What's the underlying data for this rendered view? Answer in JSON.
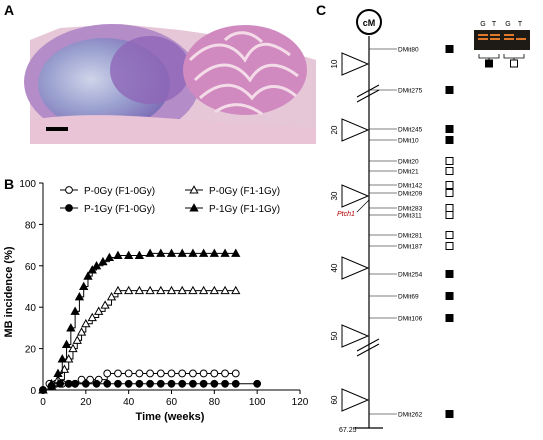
{
  "panels": {
    "a": "A",
    "b": "B",
    "c": "C"
  },
  "chart_data": {
    "type": "line",
    "xlabel": "Time (weeks)",
    "ylabel": "MB incidence (%)",
    "xlim": [
      0,
      120
    ],
    "ylim": [
      0,
      100
    ],
    "xticks": [
      "0",
      "20",
      "40",
      "60",
      "80",
      "100",
      "120"
    ],
    "yticks": [
      "0",
      "20",
      "40",
      "60",
      "80",
      "100"
    ],
    "legend_position": "top",
    "series": [
      {
        "name": "P-0Gy (F1-0Gy)",
        "marker": "open-circle",
        "x": [
          0,
          3,
          6,
          9,
          12,
          15,
          18,
          22,
          26,
          30,
          35,
          40,
          45,
          50,
          55,
          60,
          65,
          70,
          75,
          80,
          85,
          90
        ],
        "y": [
          0,
          3,
          3,
          3,
          3,
          3,
          5,
          5,
          5,
          8,
          8,
          8,
          8,
          8,
          8,
          8,
          8,
          8,
          8,
          8,
          8,
          8
        ]
      },
      {
        "name": "P-0Gy (F1-1Gy)",
        "marker": "open-triangle",
        "x": [
          0,
          4,
          7,
          10,
          12,
          14,
          16,
          18,
          20,
          23,
          26,
          29,
          32,
          35,
          40,
          45,
          50,
          55,
          60,
          65,
          70,
          75,
          80,
          85,
          90
        ],
        "y": [
          0,
          2,
          5,
          10,
          15,
          20,
          24,
          28,
          32,
          35,
          38,
          41,
          45,
          48,
          48,
          48,
          48,
          48,
          48,
          48,
          48,
          48,
          48,
          48,
          48
        ]
      },
      {
        "name": "P-1Gy (F1-0Gy)",
        "marker": "filled-circle",
        "x": [
          0,
          4,
          8,
          12,
          15,
          20,
          25,
          30,
          35,
          40,
          45,
          50,
          55,
          60,
          65,
          70,
          75,
          80,
          85,
          90,
          100
        ],
        "y": [
          0,
          2,
          3,
          3,
          3,
          3,
          3,
          3,
          3,
          3,
          3,
          3,
          3,
          3,
          3,
          3,
          3,
          3,
          3,
          3,
          3
        ]
      },
      {
        "name": "P-1Gy (F1-1Gy)",
        "marker": "filled-triangle",
        "x": [
          0,
          4,
          7,
          9,
          11,
          13,
          15,
          17,
          19,
          21,
          23,
          25,
          28,
          31,
          35,
          40,
          45,
          50,
          55,
          60,
          65,
          70,
          75,
          80,
          85,
          90
        ],
        "y": [
          0,
          3,
          8,
          15,
          22,
          30,
          38,
          45,
          50,
          55,
          58,
          60,
          62,
          64,
          65,
          65,
          65,
          66,
          66,
          66,
          66,
          66,
          66,
          66,
          66,
          66
        ]
      }
    ]
  },
  "genetic_map": {
    "centromere": "cM",
    "end_label": "67.25",
    "gene": "Ptch1",
    "gel_lanes": [
      "G",
      "T",
      "G",
      "T"
    ],
    "positions": [
      "10",
      "20",
      "30",
      "40",
      "50",
      "60"
    ],
    "markers": [
      {
        "name": "DMit80",
        "state": "filled"
      },
      {
        "name": "DMit275",
        "state": "filled"
      },
      {
        "name": "DMit245",
        "state": "filled"
      },
      {
        "name": "DMit10",
        "state": "filled"
      },
      {
        "name": "DMit20",
        "state": "open"
      },
      {
        "name": "DMit21",
        "state": "open"
      },
      {
        "name": "DMit142",
        "state": "open"
      },
      {
        "name": "DMit209",
        "state": "open"
      },
      {
        "name": "DMit283",
        "state": "open"
      },
      {
        "name": "DMit311",
        "state": "open"
      },
      {
        "name": "DMit281",
        "state": "open"
      },
      {
        "name": "DMit187",
        "state": "open"
      },
      {
        "name": "DMit254",
        "state": "filled"
      },
      {
        "name": "DMit69",
        "state": "filled"
      },
      {
        "name": "DMit106",
        "state": "filled"
      },
      {
        "name": "DMit262",
        "state": "filled"
      }
    ]
  }
}
